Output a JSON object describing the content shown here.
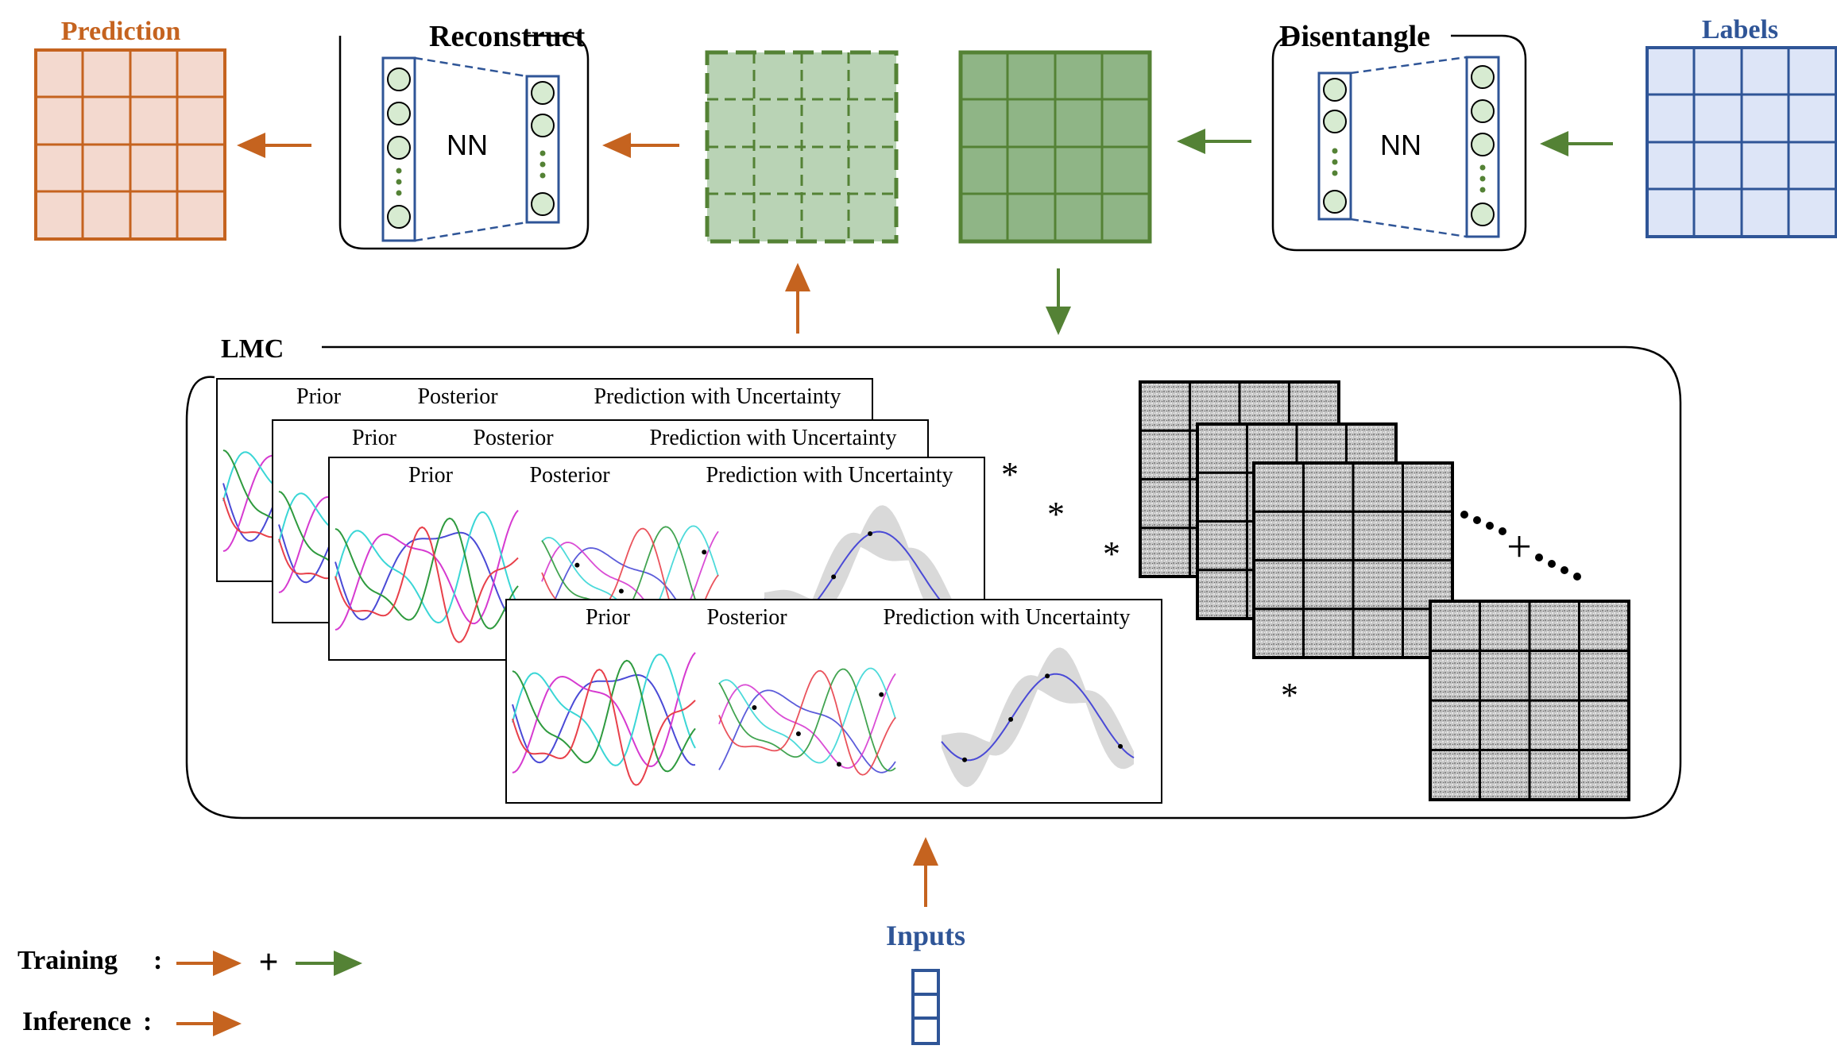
{
  "colors": {
    "orange": "#c5631f",
    "green": "#548235",
    "blue": "#2f5597",
    "black": "#000000",
    "orange_fill": "#f3d9cf",
    "green_fill": "#9bbf93",
    "blue_fill": "#dde5f7",
    "gray_fill": "#b9b9b9"
  },
  "top_row": {
    "prediction_label": "Prediction",
    "reconstruct_label": "Reconstruct",
    "disentangle_label": "Disentangle",
    "labels_label": "Labels",
    "nn_left": "NN",
    "nn_right": "NN"
  },
  "lmc": {
    "label": "LMC",
    "panel_titles": {
      "prior": "Prior",
      "posterior": "Posterior",
      "prediction": "Prediction with Uncertainty"
    },
    "operators": {
      "star": "*",
      "plus": "+"
    }
  },
  "inputs_label": "Inputs",
  "legend": {
    "training": "Training",
    "inference": "Inference",
    "colon": ":",
    "plus": "+"
  },
  "icons": [
    "neural-network-icon",
    "grid-matrix-icon",
    "arrow-icon",
    "input-vector-icon"
  ]
}
